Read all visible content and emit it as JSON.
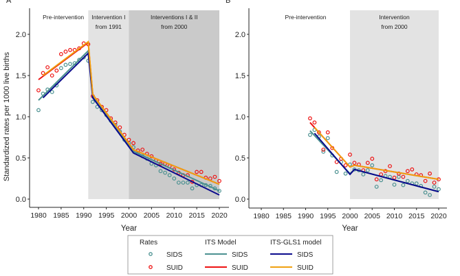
{
  "chart_data": [
    {
      "type": "line",
      "panel_label": "A",
      "xlabel": "Year",
      "ylabel": "Standardized rates per 1000 live births",
      "xlim": [
        1980,
        2020
      ],
      "ylim": [
        0,
        2.0
      ],
      "xticks": [
        1980,
        1985,
        1990,
        1995,
        2000,
        2005,
        2010,
        2015,
        2020
      ],
      "yticks": [
        "0.0",
        "0.5",
        "1.0",
        "1.5",
        "2.0"
      ],
      "periods": [
        {
          "lines": [
            "Pre-intervention"
          ],
          "start": 1980,
          "end": 1991,
          "shade": "none"
        },
        {
          "lines": [
            "Intervention I",
            "from 1991"
          ],
          "start": 1991,
          "end": 2000,
          "shade": "#e3e3e3"
        },
        {
          "lines": [
            "Interventions I & II",
            "from 2000"
          ],
          "start": 2000,
          "end": 2020,
          "shade": "#cacaca"
        }
      ],
      "rates": {
        "years": [
          1980,
          1981,
          1982,
          1983,
          1984,
          1985,
          1986,
          1987,
          1988,
          1989,
          1990,
          1991,
          1992,
          1993,
          1994,
          1995,
          1996,
          1997,
          1998,
          1999,
          2000,
          2001,
          2002,
          2003,
          2004,
          2005,
          2006,
          2007,
          2008,
          2009,
          2010,
          2011,
          2012,
          2013,
          2014,
          2015,
          2016,
          2017,
          2018,
          2019,
          2020
        ],
        "SIDS": [
          1.08,
          1.28,
          1.33,
          1.3,
          1.38,
          1.59,
          1.63,
          1.64,
          1.65,
          1.69,
          1.72,
          1.68,
          1.18,
          1.12,
          1.08,
          1.02,
          0.95,
          0.9,
          0.82,
          0.72,
          0.68,
          0.63,
          0.55,
          0.52,
          0.49,
          0.43,
          0.41,
          0.34,
          0.32,
          0.29,
          0.25,
          0.2,
          0.2,
          0.2,
          0.13,
          0.17,
          0.17,
          0.17,
          0.16,
          0.13,
          0.1
        ],
        "SUID": [
          1.32,
          1.53,
          1.6,
          1.5,
          1.56,
          1.76,
          1.79,
          1.81,
          1.81,
          1.83,
          1.89,
          1.88,
          1.25,
          1.2,
          1.12,
          1.08,
          0.98,
          0.93,
          0.87,
          0.78,
          0.72,
          0.68,
          0.59,
          0.6,
          0.55,
          0.52,
          0.47,
          0.43,
          0.43,
          0.4,
          0.36,
          0.32,
          0.29,
          0.29,
          0.21,
          0.33,
          0.33,
          0.26,
          0.25,
          0.27,
          0.22
        ]
      },
      "models": [
        {
          "name": "ITS SIDS",
          "color": "#4a9090",
          "points": [
            [
              1980,
              1.2
            ],
            [
              1991,
              1.8
            ],
            [
              1992,
              1.24
            ],
            [
              2001,
              0.58
            ],
            [
              2020,
              0.1
            ]
          ]
        },
        {
          "name": "ITS SUID",
          "color": "#ee1111",
          "points": [
            [
              1980,
              1.45
            ],
            [
              1991,
              1.9
            ],
            [
              1992,
              1.27
            ],
            [
              2001,
              0.6
            ],
            [
              2020,
              0.18
            ]
          ]
        },
        {
          "name": "ITS-GLS1 SIDS",
          "color": "#0a0a8c",
          "points": [
            [
              1981,
              1.23
            ],
            [
              1991,
              1.77
            ],
            [
              1992,
              1.23
            ],
            [
              2001,
              0.56
            ],
            [
              2020,
              0.05
            ]
          ]
        },
        {
          "name": "ITS-GLS1 SUID",
          "color": "#f0a010",
          "points": [
            [
              1981,
              1.5
            ],
            [
              1991,
              1.91
            ],
            [
              1992,
              1.27
            ],
            [
              2001,
              0.6
            ],
            [
              2020,
              0.18
            ]
          ]
        }
      ]
    },
    {
      "type": "line",
      "panel_label": "B",
      "xlabel": "Year",
      "xlim": [
        1980,
        2020
      ],
      "ylim": [
        0,
        2.0
      ],
      "xticks": [
        1980,
        1985,
        1990,
        1995,
        2000,
        2005,
        2010,
        2015,
        2020
      ],
      "yticks": [
        "0.0",
        "0.5",
        "1.0",
        "1.5",
        "2.0"
      ],
      "periods": [
        {
          "lines": [
            "Pre-intervention"
          ],
          "start": 1980,
          "end": 2000,
          "shade": "none"
        },
        {
          "lines": [
            "Intervention",
            "from 2000"
          ],
          "start": 2000,
          "end": 2020,
          "shade": "#e3e3e3"
        }
      ],
      "rates": {
        "years": [
          1991,
          1992,
          1993,
          1994,
          1995,
          1996,
          1997,
          1998,
          1999,
          2000,
          2001,
          2002,
          2003,
          2004,
          2005,
          2006,
          2007,
          2008,
          2009,
          2010,
          2011,
          2012,
          2013,
          2014,
          2015,
          2016,
          2017,
          2018,
          2019,
          2020
        ],
        "SIDS": [
          0.78,
          0.84,
          0.76,
          0.575,
          0.74,
          0.53,
          0.33,
          0.45,
          0.31,
          0.42,
          0.36,
          0.35,
          0.3,
          0.35,
          0.41,
          0.15,
          0.23,
          0.28,
          0.27,
          0.175,
          0.27,
          0.17,
          0.22,
          0.19,
          0.19,
          0.16,
          0.08,
          0.05,
          0.15,
          0.12
        ],
        "SUID": [
          0.98,
          0.93,
          0.81,
          0.6,
          0.81,
          0.62,
          0.45,
          0.49,
          0.41,
          0.54,
          0.44,
          0.42,
          0.35,
          0.44,
          0.49,
          0.24,
          0.3,
          0.34,
          0.4,
          0.26,
          0.31,
          0.27,
          0.34,
          0.36,
          0.3,
          0.29,
          0.22,
          0.31,
          0.2,
          0.24
        ]
      },
      "models": [
        {
          "name": "ITS SIDS",
          "color": "#4a9090",
          "points": [
            [
              1991,
              0.83
            ],
            [
              2000,
              0.31
            ],
            [
              2001,
              0.36
            ],
            [
              2020,
              0.09
            ]
          ]
        },
        {
          "name": "ITS SUID",
          "color": "#ee1111",
          "points": [
            [
              1991,
              0.93
            ],
            [
              2000,
              0.39
            ],
            [
              2001,
              0.41
            ],
            [
              2020,
              0.24
            ]
          ]
        },
        {
          "name": "ITS-GLS1 SIDS",
          "color": "#0a0a8c",
          "points": [
            [
              1992,
              0.8
            ],
            [
              2000,
              0.3
            ],
            [
              2001,
              0.36
            ],
            [
              2020,
              0.09
            ]
          ]
        },
        {
          "name": "ITS-GLS1 SUID",
          "color": "#f0a010",
          "points": [
            [
              1992,
              0.87
            ],
            [
              2000,
              0.39
            ],
            [
              2001,
              0.41
            ],
            [
              2020,
              0.24
            ]
          ]
        }
      ]
    }
  ],
  "legend": {
    "col_rates": "Rates",
    "col_its": "ITS Model",
    "col_gls": "ITS-GLS1 model",
    "sids": "SIDS",
    "suid": "SUID",
    "colors": {
      "sids_point": "#4a9090",
      "suid_point": "#ee1111",
      "its_sids": "#4a9090",
      "its_suid": "#ee1111",
      "gls_sids": "#0a0a8c",
      "gls_suid": "#f0a010"
    }
  }
}
